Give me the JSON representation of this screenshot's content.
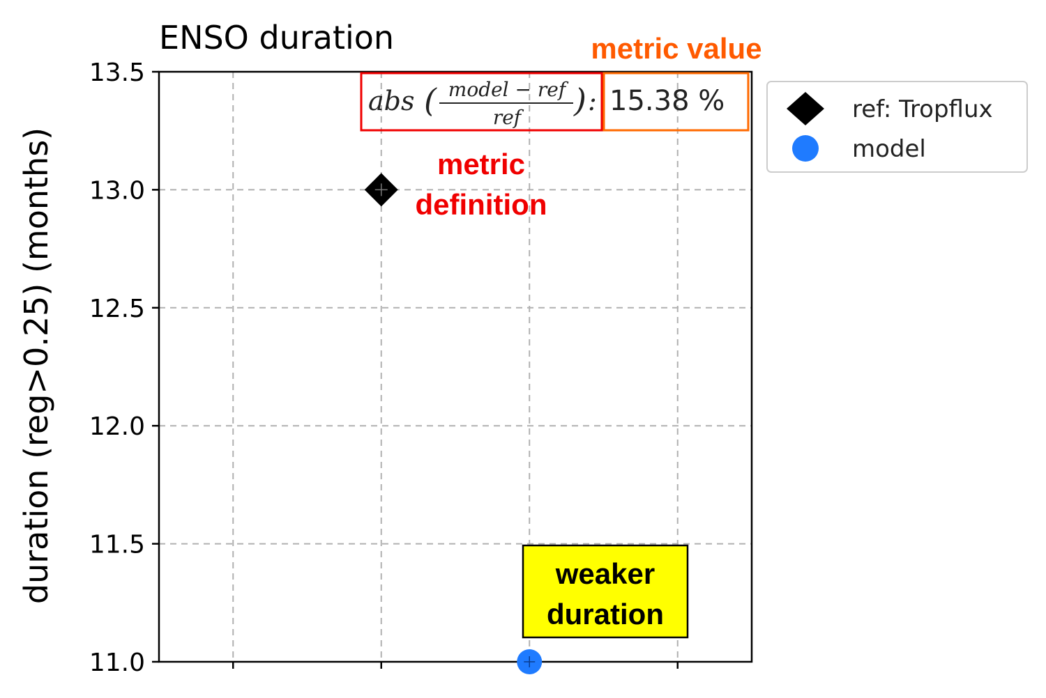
{
  "chart_data": {
    "type": "scatter",
    "title": "ENSO duration",
    "ylabel": "duration (reg>0.25) (months)",
    "xlabel": "",
    "ylim": [
      11.0,
      13.5
    ],
    "yticks": [
      "11.0",
      "11.5",
      "12.0",
      "12.5",
      "13.0",
      "13.5"
    ],
    "xticks": [
      "",
      "",
      "",
      ""
    ],
    "grid": true,
    "series": [
      {
        "name": "ref: Tropflux",
        "marker": "diamond",
        "color": "#000000",
        "x_index": 1,
        "value": 13.0
      },
      {
        "name": "model",
        "marker": "circle",
        "color": "#1f7bff",
        "x_index": 2,
        "value": 11.0
      }
    ],
    "legend_position": "right, outside top",
    "metric": {
      "fn": "abs",
      "numerator": "model − ref",
      "denominator": "ref",
      "separator": ":",
      "value": "15.38 %"
    },
    "annotations": {
      "metric_value_label": "metric value",
      "metric_definition_line1": "metric",
      "metric_definition_line2": "definition",
      "model_note_line1": "weaker",
      "model_note_line2": "duration"
    }
  },
  "colors": {
    "metric_definition": "#f00000",
    "metric_value": "#ff5a00",
    "note_fill": "#ffff00",
    "grid": "#b0b0b0"
  }
}
